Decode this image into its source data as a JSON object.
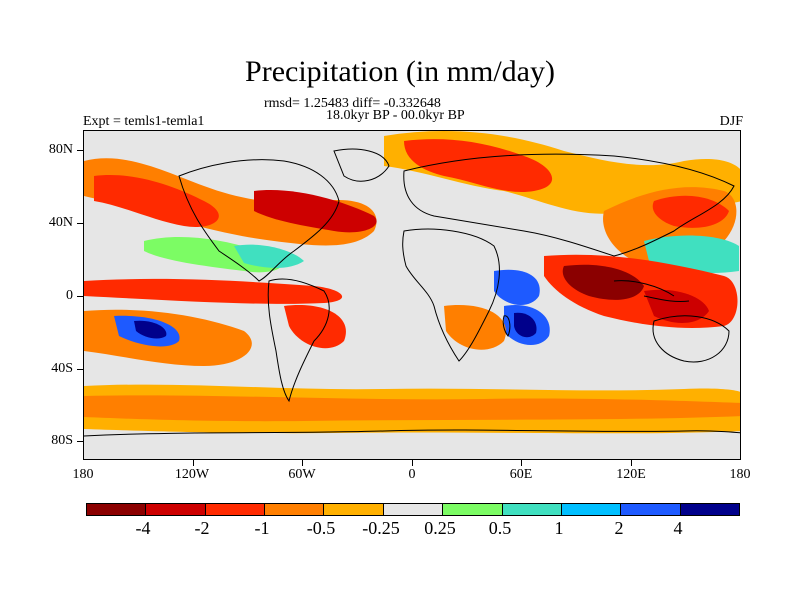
{
  "title": "Precipitation (in mm/day)",
  "stats": "rmsd= 1.25483 diff= -0.332648",
  "period": "18.0kyr BP - 00.0kyr BP",
  "experiment": "Expt = temls1-temla1",
  "season": "DJF",
  "lat_labels": [
    "80N",
    "40N",
    "0",
    "40S",
    "80S"
  ],
  "lon_labels": [
    "180",
    "120W",
    "60W",
    "0",
    "60E",
    "120E",
    "180"
  ],
  "colorbar": {
    "labels": [
      "-4",
      "-2",
      "-1",
      "-0.5",
      "-0.25",
      "0.25",
      "0.5",
      "1",
      "2",
      "4"
    ],
    "colors": [
      "#8b0000",
      "#cd0000",
      "#ff2a00",
      "#ff7f00",
      "#ffb000",
      "#e6e6e6",
      "#7cfc64",
      "#40e0c0",
      "#00bfff",
      "#1e5aff",
      "#00008b"
    ]
  }
}
